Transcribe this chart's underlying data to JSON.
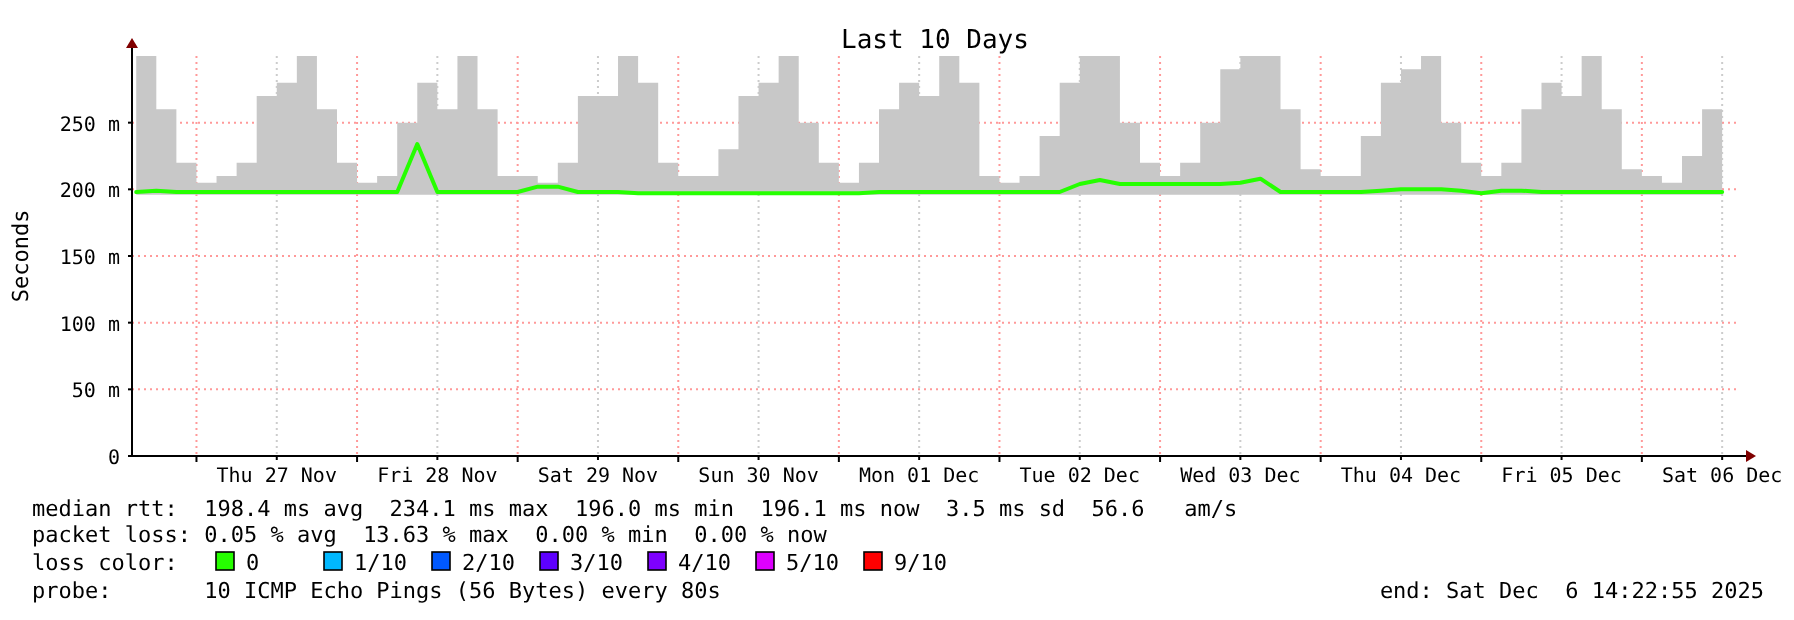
{
  "chart_data": {
    "type": "line",
    "title": "Last 10 Days",
    "ylabel": "Seconds",
    "x": [
      "2025-11-26T15:00",
      "2025-11-26T18:00",
      "2025-11-26T21:00",
      "2025-11-27T00:00",
      "2025-11-27T03:00",
      "2025-11-27T06:00",
      "2025-11-27T09:00",
      "2025-11-27T12:00",
      "2025-11-27T15:00",
      "2025-11-27T18:00",
      "2025-11-27T21:00",
      "2025-11-28T00:00",
      "2025-11-28T03:00",
      "2025-11-28T06:00",
      "2025-11-28T09:00",
      "2025-11-28T12:00",
      "2025-11-28T15:00",
      "2025-11-28T18:00",
      "2025-11-28T21:00",
      "2025-11-29T00:00",
      "2025-11-29T03:00",
      "2025-11-29T06:00",
      "2025-11-29T09:00",
      "2025-11-29T12:00",
      "2025-11-29T15:00",
      "2025-11-29T18:00",
      "2025-11-29T21:00",
      "2025-11-30T00:00",
      "2025-11-30T03:00",
      "2025-11-30T06:00",
      "2025-11-30T09:00",
      "2025-11-30T12:00",
      "2025-11-30T15:00",
      "2025-11-30T18:00",
      "2025-11-30T21:00",
      "2025-12-01T00:00",
      "2025-12-01T03:00",
      "2025-12-01T06:00",
      "2025-12-01T09:00",
      "2025-12-01T12:00",
      "2025-12-01T15:00",
      "2025-12-01T18:00",
      "2025-12-01T21:00",
      "2025-12-02T00:00",
      "2025-12-02T03:00",
      "2025-12-02T06:00",
      "2025-12-02T09:00",
      "2025-12-02T12:00",
      "2025-12-02T15:00",
      "2025-12-02T18:00",
      "2025-12-02T21:00",
      "2025-12-03T00:00",
      "2025-12-03T03:00",
      "2025-12-03T06:00",
      "2025-12-03T09:00",
      "2025-12-03T12:00",
      "2025-12-03T15:00",
      "2025-12-03T18:00",
      "2025-12-03T21:00",
      "2025-12-04T00:00",
      "2025-12-04T03:00",
      "2025-12-04T06:00",
      "2025-12-04T09:00",
      "2025-12-04T12:00",
      "2025-12-04T15:00",
      "2025-12-04T18:00",
      "2025-12-04T21:00",
      "2025-12-05T00:00",
      "2025-12-05T03:00",
      "2025-12-05T06:00",
      "2025-12-05T09:00",
      "2025-12-05T12:00",
      "2025-12-05T15:00",
      "2025-12-05T18:00",
      "2025-12-05T21:00",
      "2025-12-06T00:00",
      "2025-12-06T03:00",
      "2025-12-06T06:00",
      "2025-12-06T09:00",
      "2025-12-06T12:00"
    ],
    "series": [
      {
        "name": "0",
        "color": "#26ff00",
        "values": [
          198,
          199,
          198,
          198,
          198,
          198,
          198,
          198,
          198,
          198,
          198,
          198,
          198,
          198,
          234,
          198,
          198,
          198,
          198,
          198,
          202,
          202,
          198,
          198,
          198,
          197,
          197,
          197,
          197,
          197,
          197,
          197,
          197,
          197,
          197,
          197,
          197,
          198,
          198,
          198,
          198,
          198,
          198,
          198,
          198,
          198,
          198,
          204,
          207,
          204,
          204,
          204,
          204,
          204,
          204,
          205,
          208,
          198,
          198,
          198,
          198,
          198,
          199,
          200,
          200,
          200,
          199,
          197,
          199,
          199,
          198,
          198,
          198,
          198,
          198,
          198,
          198,
          198,
          198,
          198
        ],
        "lower": [
          196,
          196,
          196,
          196,
          196,
          196,
          196,
          196,
          196,
          196,
          196,
          196,
          196,
          196,
          196,
          196,
          196,
          196,
          196,
          196,
          196,
          196,
          196,
          196,
          196,
          196,
          196,
          196,
          196,
          196,
          196,
          196,
          196,
          196,
          196,
          196,
          196,
          196,
          196,
          196,
          196,
          196,
          196,
          196,
          196,
          196,
          196,
          196,
          196,
          196,
          196,
          196,
          196,
          196,
          196,
          196,
          196,
          196,
          196,
          196,
          196,
          196,
          196,
          196,
          196,
          196,
          196,
          196,
          196,
          196,
          196,
          196,
          196,
          196,
          196,
          196,
          196,
          196,
          196,
          196
        ],
        "upper": [
          300,
          260,
          220,
          205,
          210,
          220,
          270,
          280,
          300,
          260,
          220,
          205,
          210,
          250,
          280,
          260,
          300,
          260,
          210,
          210,
          205,
          220,
          270,
          270,
          300,
          280,
          220,
          210,
          210,
          230,
          270,
          280,
          300,
          250,
          220,
          205,
          220,
          260,
          280,
          270,
          300,
          280,
          210,
          205,
          210,
          240,
          280,
          300,
          300,
          250,
          220,
          210,
          220,
          250,
          290,
          300,
          300,
          260,
          215,
          210,
          210,
          240,
          280,
          290,
          300,
          250,
          220,
          210,
          220,
          260,
          280,
          270,
          300,
          260,
          215,
          210,
          205,
          225,
          260,
          280
        ]
      },
      {
        "name": "1/10",
        "color": "#00b8ff",
        "values": [
          null,
          null,
          null,
          null,
          null,
          null,
          null,
          null,
          null,
          null,
          null,
          null,
          null,
          null,
          null,
          null,
          null,
          null,
          null,
          null,
          null,
          null,
          null,
          null,
          null,
          null,
          null,
          null,
          null,
          null,
          null,
          null,
          null,
          null,
          null,
          null,
          null,
          null,
          null,
          null,
          null,
          null,
          null,
          null,
          null,
          null,
          null,
          null,
          null,
          null,
          null,
          null,
          null,
          null,
          null,
          null,
          null,
          null,
          null,
          null,
          null,
          null,
          null,
          null,
          null,
          null,
          null,
          null,
          null,
          null,
          null,
          null,
          null,
          null,
          null,
          null,
          null,
          null,
          null,
          null
        ]
      },
      {
        "name": "2/10",
        "color": "#0059ff",
        "values": [
          null,
          null,
          null,
          null,
          null,
          null,
          null,
          null,
          null,
          null,
          null,
          null,
          null,
          null,
          null,
          null,
          null,
          null,
          null,
          null,
          null,
          null,
          null,
          null,
          null,
          null,
          null,
          null,
          null,
          null,
          null,
          null,
          null,
          null,
          null,
          null,
          null,
          null,
          null,
          null,
          null,
          null,
          null,
          null,
          null,
          null,
          null,
          null,
          null,
          null,
          null,
          null,
          null,
          null,
          null,
          null,
          null,
          null,
          null,
          null,
          null,
          null,
          null,
          null,
          null,
          null,
          null,
          null,
          null,
          null,
          null,
          null,
          null,
          null,
          null,
          null,
          null,
          null,
          null,
          null
        ]
      },
      {
        "name": "3/10",
        "color": "#5e00ff",
        "values": [
          null,
          null,
          null,
          null,
          null,
          null,
          null,
          null,
          null,
          null,
          null,
          null,
          null,
          null,
          null,
          null,
          null,
          null,
          null,
          null,
          null,
          null,
          null,
          null,
          null,
          null,
          null,
          null,
          null,
          null,
          null,
          null,
          null,
          null,
          null,
          null,
          null,
          null,
          null,
          null,
          null,
          null,
          null,
          null,
          null,
          null,
          null,
          null,
          null,
          null,
          null,
          null,
          null,
          null,
          null,
          null,
          null,
          null,
          null,
          null,
          null,
          null,
          null,
          null,
          null,
          null,
          null,
          null,
          null,
          null,
          null,
          null,
          null,
          null,
          null,
          null,
          null,
          null,
          null,
          null
        ]
      },
      {
        "name": "4/10",
        "color": "#7e00ff",
        "values": [
          null,
          null,
          null,
          null,
          null,
          null,
          null,
          null,
          null,
          null,
          null,
          null,
          null,
          null,
          null,
          null,
          null,
          null,
          null,
          null,
          null,
          null,
          null,
          null,
          null,
          null,
          null,
          null,
          null,
          null,
          null,
          null,
          null,
          null,
          null,
          null,
          null,
          null,
          null,
          null,
          null,
          null,
          null,
          null,
          null,
          null,
          null,
          null,
          null,
          null,
          null,
          null,
          null,
          null,
          null,
          null,
          null,
          null,
          null,
          null,
          null,
          null,
          null,
          null,
          null,
          null,
          null,
          null,
          null,
          null,
          null,
          null,
          null,
          null,
          null,
          null,
          null,
          null,
          null,
          null
        ]
      },
      {
        "name": "5/10",
        "color": "#dd00ff",
        "values": [
          null,
          null,
          null,
          null,
          null,
          null,
          null,
          null,
          null,
          null,
          null,
          null,
          null,
          null,
          null,
          null,
          null,
          null,
          null,
          null,
          null,
          null,
          null,
          null,
          null,
          null,
          null,
          null,
          null,
          null,
          null,
          null,
          null,
          null,
          null,
          null,
          null,
          null,
          null,
          null,
          null,
          null,
          null,
          null,
          null,
          null,
          null,
          null,
          null,
          null,
          null,
          null,
          null,
          null,
          null,
          null,
          null,
          null,
          null,
          null,
          null,
          null,
          null,
          null,
          null,
          null,
          null,
          null,
          null,
          null,
          null,
          null,
          null,
          null,
          null,
          null,
          null,
          null,
          null,
          null
        ]
      },
      {
        "name": "9/10",
        "color": "#ff0000",
        "values": [
          null,
          null,
          null,
          null,
          null,
          null,
          null,
          null,
          null,
          null,
          null,
          null,
          null,
          null,
          null,
          null,
          null,
          null,
          null,
          null,
          null,
          null,
          null,
          null,
          null,
          null,
          null,
          null,
          null,
          null,
          null,
          null,
          null,
          null,
          null,
          null,
          null,
          null,
          null,
          null,
          null,
          null,
          null,
          null,
          null,
          null,
          null,
          null,
          null,
          null,
          null,
          null,
          null,
          null,
          null,
          null,
          null,
          null,
          null,
          null,
          null,
          null,
          null,
          null,
          null,
          null,
          null,
          null,
          null,
          null,
          null,
          null,
          null,
          null,
          null,
          null,
          null,
          null,
          null,
          null
        ]
      }
    ],
    "legend": "bottom",
    "legend_title": "loss color:",
    "grid": true,
    "line_style": "solid",
    "xlim": [
      "2025-11-26T14:22",
      "2025-12-06T14:22"
    ],
    "xticks": [
      {
        "value": "2025-11-27T00:00",
        "label": null
      },
      {
        "value": "2025-11-27T12:00",
        "label": "Thu 27 Nov"
      },
      {
        "value": "2025-11-28T00:00",
        "label": null
      },
      {
        "value": "2025-11-28T12:00",
        "label": "Fri 28 Nov"
      },
      {
        "value": "2025-11-29T00:00",
        "label": null
      },
      {
        "value": "2025-11-29T12:00",
        "label": "Sat 29 Nov"
      },
      {
        "value": "2025-11-30T00:00",
        "label": null
      },
      {
        "value": "2025-11-30T12:00",
        "label": "Sun 30 Nov"
      },
      {
        "value": "2025-12-01T00:00",
        "label": null
      },
      {
        "value": "2025-12-01T12:00",
        "label": "Mon 01 Dec"
      },
      {
        "value": "2025-12-02T00:00",
        "label": null
      },
      {
        "value": "2025-12-02T12:00",
        "label": "Tue 02 Dec"
      },
      {
        "value": "2025-12-03T00:00",
        "label": null
      },
      {
        "value": "2025-12-03T12:00",
        "label": "Wed 03 Dec"
      },
      {
        "value": "2025-12-04T00:00",
        "label": null
      },
      {
        "value": "2025-12-04T12:00",
        "label": "Thu 04 Dec"
      },
      {
        "value": "2025-12-05T00:00",
        "label": null
      },
      {
        "value": "2025-12-05T12:00",
        "label": "Fri 05 Dec"
      },
      {
        "value": "2025-12-06T00:00",
        "label": null
      },
      {
        "value": "2025-12-06T12:00",
        "label": "Sat 06 Dec"
      }
    ],
    "ylim": [
      0,
      300
    ],
    "yticks": [
      0,
      {
        "value": 50,
        "label": "50 m"
      },
      {
        "value": 100,
        "label": "100 m"
      },
      {
        "value": 150,
        "label": "150 m"
      },
      {
        "value": 200,
        "label": "200 m"
      },
      {
        "value": 250,
        "label": "250 m"
      }
    ],
    "annotations": [
      "median rtt:  198.4 ms avg  234.1 ms max  196.0 ms min  196.1 ms now  3.5 ms sd  56.6   am/s",
      "packet loss: 0.05 % avg  13.63 % max  0.00 % min  0.00 % now",
      "probe:       10 ICMP Echo Pings (56 Bytes) every 80s",
      "end: Sat Dec  6 14:22:55 2025"
    ]
  }
}
